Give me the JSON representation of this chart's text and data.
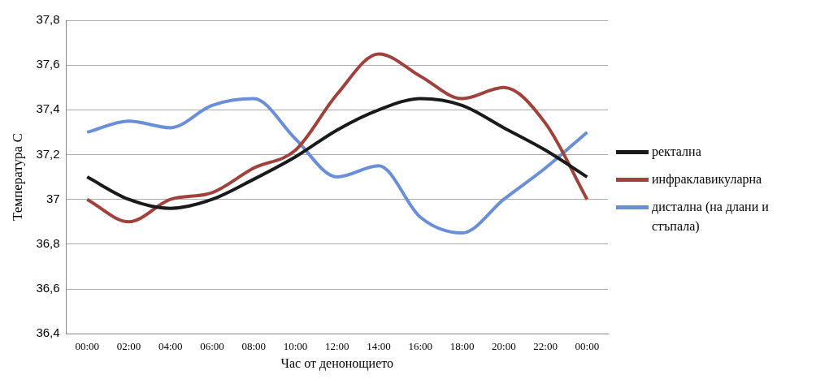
{
  "chart_data": {
    "type": "line",
    "xlabel": "Час от денонощието",
    "ylabel": "Температура C",
    "categories": [
      "00:00",
      "02:00",
      "04:00",
      "06:00",
      "08:00",
      "10:00",
      "12:00",
      "14:00",
      "16:00",
      "18:00",
      "20:00",
      "22:00",
      "00:00"
    ],
    "series": [
      {
        "name": "ректална",
        "color": "#1a1a1a",
        "values": [
          37.1,
          37.0,
          36.96,
          37.0,
          37.09,
          37.19,
          37.31,
          37.4,
          37.45,
          37.42,
          37.32,
          37.22,
          37.1
        ]
      },
      {
        "name": "инфраклавикуларна",
        "color": "#a0413c",
        "values": [
          37.0,
          36.9,
          37.0,
          37.03,
          37.14,
          37.22,
          37.47,
          37.65,
          37.55,
          37.45,
          37.5,
          37.34,
          37.0
        ]
      },
      {
        "name": "дистална (на длани и стъпала)",
        "color": "#6a8fd8",
        "values": [
          37.3,
          37.35,
          37.32,
          37.42,
          37.45,
          37.27,
          37.1,
          37.15,
          36.92,
          36.85,
          37.0,
          37.14,
          37.3
        ]
      }
    ],
    "ylim": [
      36.4,
      37.8
    ],
    "yticks": [
      {
        "value": 36.4,
        "label": "36,4"
      },
      {
        "value": 36.6,
        "label": "36,6"
      },
      {
        "value": 36.8,
        "label": "36,8"
      },
      {
        "value": 37,
        "label": "37"
      },
      {
        "value": 37.2,
        "label": "37,2"
      },
      {
        "value": 37.4,
        "label": "37,4"
      },
      {
        "value": 37.6,
        "label": "37,6"
      },
      {
        "value": 37.8,
        "label": "37,8"
      }
    ],
    "grid": "y",
    "legend": "right",
    "marker": "none",
    "line_style": "solid"
  }
}
